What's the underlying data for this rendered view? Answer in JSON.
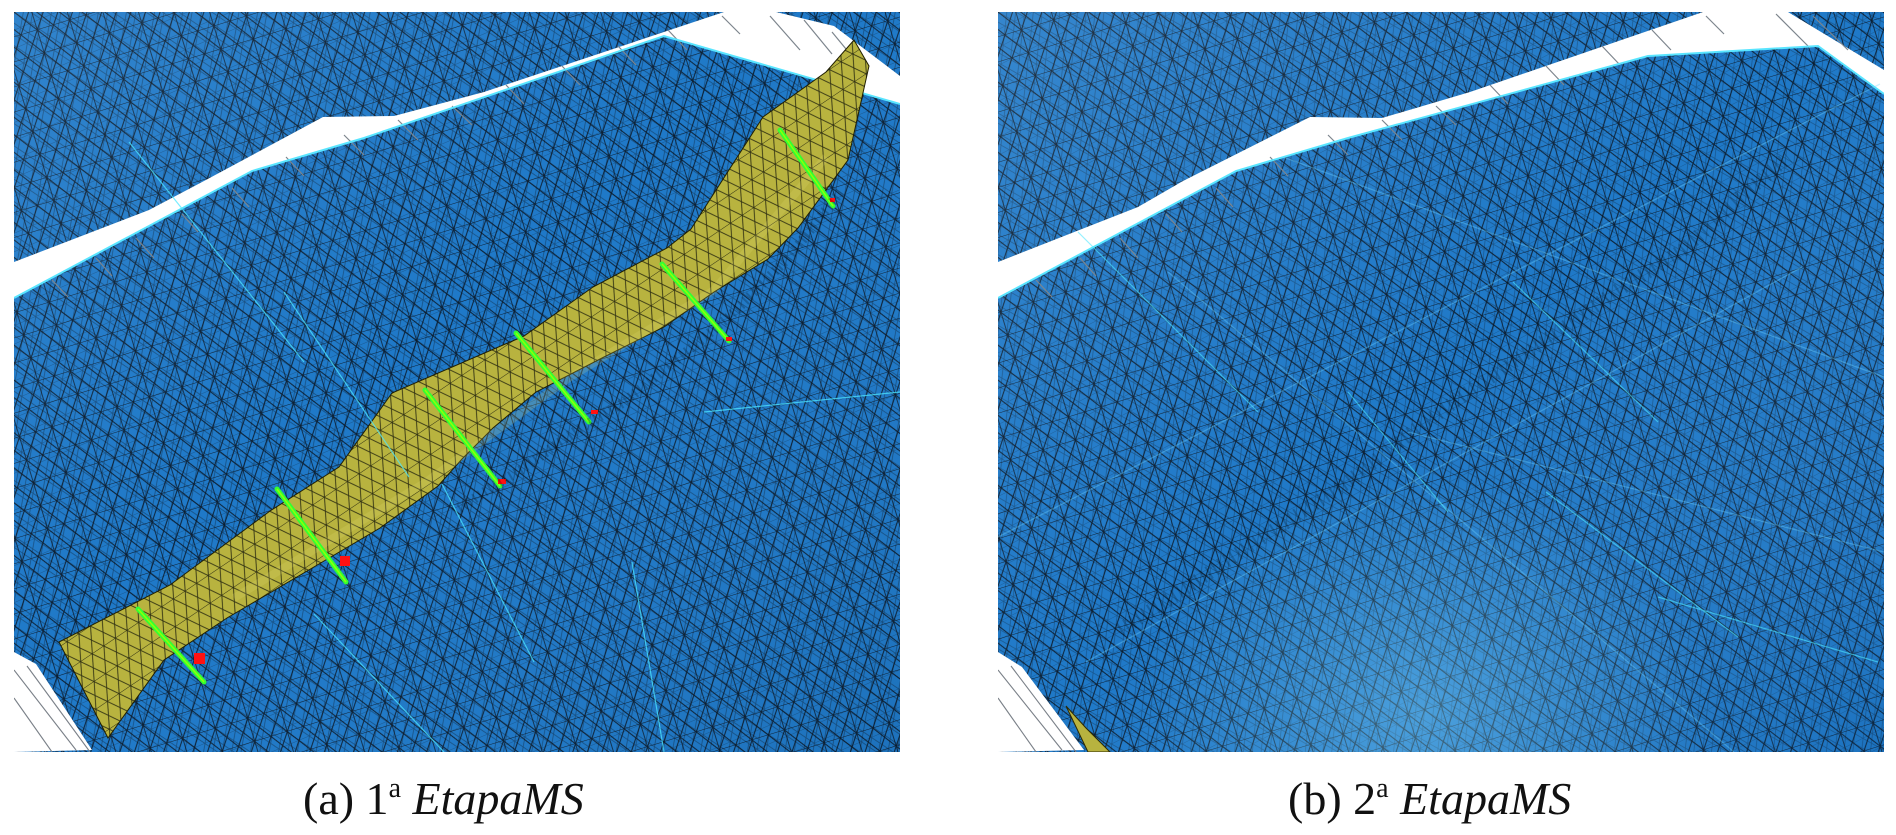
{
  "figure": {
    "panels": [
      {
        "label": "(a) 1",
        "superscript": "a",
        "stage": "EtapaMS"
      },
      {
        "label": "(b) 2",
        "superscript": "a",
        "stage": "EtapaMS"
      }
    ],
    "colors": {
      "mesh_blue": "#1f79c8",
      "mesh_blue_dark": "#176bb6",
      "mesh_edge": "#0b0f16",
      "fault_yellow": "#b8b33f",
      "green_marker": "#32ff32",
      "red_marker": "#ff1111",
      "cyan_line": "#59e5ff",
      "white_gap": "#ffffff"
    },
    "icons": [
      "triangular-mesh-image",
      "fault-strip-image"
    ]
  }
}
